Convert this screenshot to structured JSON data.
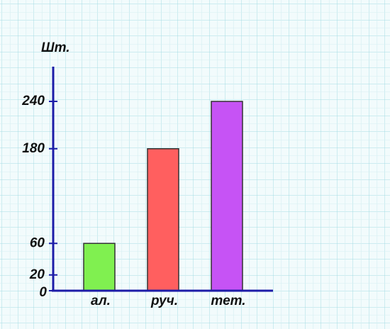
{
  "chart_data": {
    "type": "bar",
    "y_label": "Шт.",
    "categories": [
      "ал.",
      "руч.",
      "тет."
    ],
    "values": [
      60,
      180,
      240
    ],
    "colors": [
      "#80f050",
      "#ff5f5f",
      "#c653f5"
    ],
    "ylim": [
      0,
      280
    ],
    "yticks": [
      0,
      20,
      60,
      180,
      240
    ],
    "axis_color": "#1c1ca8",
    "grid": true
  }
}
